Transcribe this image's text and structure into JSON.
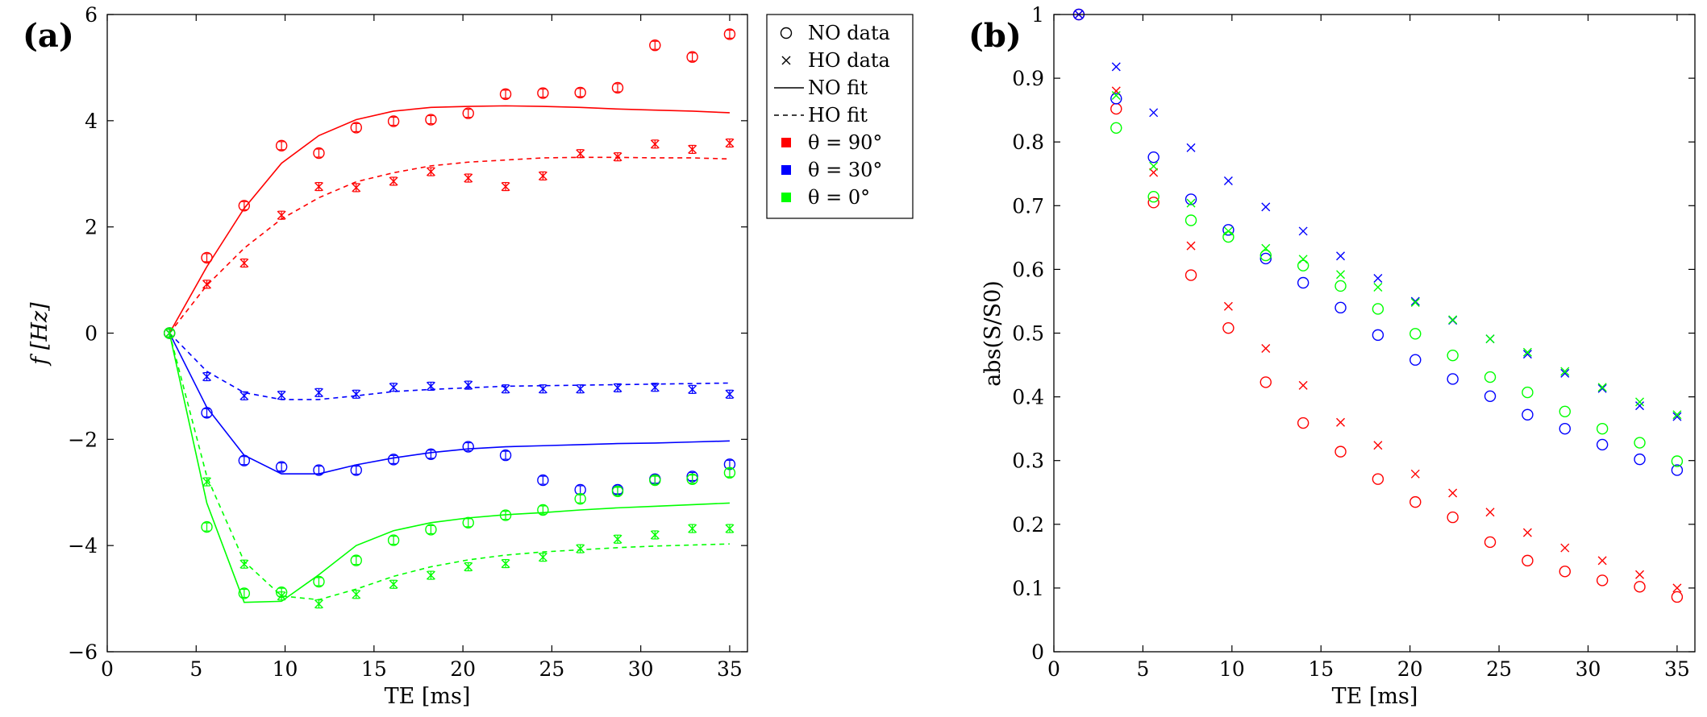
{
  "chart_data": [
    {
      "type": "scatter",
      "panel_label": "(a)",
      "xlabel": "TE [ms]",
      "ylabel": "f [Hz]",
      "xlim": [
        0,
        36
      ],
      "ylim": [
        -6,
        6
      ],
      "xticks": [
        0,
        5,
        10,
        15,
        20,
        25,
        30,
        35
      ],
      "yticks": [
        -6,
        -4,
        -2,
        0,
        2,
        4,
        6
      ],
      "xtick_labels": [
        "0",
        "5",
        "10",
        "15",
        "20",
        "25",
        "30",
        "35"
      ],
      "ytick_labels": [
        "−6",
        "−4",
        "−2",
        "0",
        "2",
        "4",
        "6"
      ],
      "legend": {
        "position": "outside-right",
        "entries": [
          {
            "label": "NO data",
            "kind": "circle"
          },
          {
            "label": "HO data",
            "kind": "cross"
          },
          {
            "label": "NO fit",
            "kind": "solid"
          },
          {
            "label": "HO fit",
            "kind": "dashed"
          },
          {
            "label": "θ = 90°",
            "kind": "square",
            "color": "#ff0000"
          },
          {
            "label": "θ = 30°",
            "kind": "square",
            "color": "#0000ff"
          },
          {
            "label": "θ = 0°",
            "kind": "square",
            "color": "#00ff00"
          }
        ]
      },
      "series": [
        {
          "name": "NO data θ = 90°",
          "kind": "circle",
          "color": "#ff0000",
          "errorbars": true,
          "x": [
            3.5,
            5.6,
            7.7,
            9.8,
            11.9,
            14,
            16.1,
            18.2,
            20.3,
            22.4,
            24.5,
            26.6,
            28.7,
            30.8,
            32.9,
            35
          ],
          "y": [
            0,
            1.42,
            2.4,
            3.53,
            3.39,
            3.87,
            3.99,
            4.02,
            4.14,
            4.5,
            4.52,
            4.53,
            4.62,
            5.42,
            5.2,
            5.63
          ]
        },
        {
          "name": "HO data θ = 90°",
          "kind": "cross",
          "color": "#ff0000",
          "errorbars": true,
          "x": [
            3.5,
            5.6,
            7.7,
            9.8,
            11.9,
            14,
            16.1,
            18.2,
            20.3,
            22.4,
            24.5,
            26.6,
            28.7,
            30.8,
            32.9,
            35
          ],
          "y": [
            0,
            0.92,
            1.32,
            2.22,
            2.76,
            2.74,
            2.86,
            3.04,
            2.92,
            2.76,
            2.96,
            3.38,
            3.32,
            3.56,
            3.46,
            3.58
          ]
        },
        {
          "name": "NO fit θ = 90°",
          "kind": "solid",
          "color": "#ff0000",
          "x": [
            3.5,
            5.6,
            7.7,
            9.8,
            11.9,
            14,
            16.1,
            18.2,
            20.3,
            22.4,
            24.5,
            26.6,
            28.7,
            30.8,
            32.9,
            35
          ],
          "y": [
            0,
            1.25,
            2.35,
            3.2,
            3.72,
            4.02,
            4.18,
            4.25,
            4.27,
            4.28,
            4.27,
            4.25,
            4.22,
            4.2,
            4.18,
            4.15
          ]
        },
        {
          "name": "HO fit θ = 90°",
          "kind": "dashed",
          "color": "#ff0000",
          "x": [
            3.5,
            5.6,
            7.7,
            9.8,
            11.9,
            14,
            16.1,
            18.2,
            20.3,
            22.4,
            24.5,
            26.6,
            28.7,
            30.8,
            32.9,
            35
          ],
          "y": [
            0,
            0.9,
            1.6,
            2.15,
            2.55,
            2.85,
            3.02,
            3.15,
            3.22,
            3.26,
            3.3,
            3.31,
            3.31,
            3.3,
            3.3,
            3.28
          ]
        },
        {
          "name": "NO data θ = 30°",
          "kind": "circle",
          "color": "#0000ff",
          "errorbars": true,
          "x": [
            3.5,
            5.6,
            7.7,
            9.8,
            11.9,
            14,
            16.1,
            18.2,
            20.3,
            22.4,
            24.5,
            26.6,
            28.7,
            30.8,
            32.9,
            35
          ],
          "y": [
            0,
            -1.5,
            -2.4,
            -2.52,
            -2.58,
            -2.58,
            -2.38,
            -2.28,
            -2.14,
            -2.3,
            -2.77,
            -2.95,
            -2.95,
            -2.75,
            -2.7,
            -2.47
          ]
        },
        {
          "name": "HO data θ = 30°",
          "kind": "cross",
          "color": "#0000ff",
          "errorbars": true,
          "x": [
            3.5,
            5.6,
            7.7,
            9.8,
            11.9,
            14,
            16.1,
            18.2,
            20.3,
            22.4,
            24.5,
            26.6,
            28.7,
            30.8,
            32.9,
            35
          ],
          "y": [
            0,
            -0.82,
            -1.18,
            -1.17,
            -1.12,
            -1.15,
            -1.02,
            -1.0,
            -0.98,
            -1.05,
            -1.05,
            -1.05,
            -1.03,
            -1.02,
            -1.06,
            -1.15
          ]
        },
        {
          "name": "NO fit θ = 30°",
          "kind": "solid",
          "color": "#0000ff",
          "x": [
            3.5,
            5.6,
            7.7,
            9.8,
            11.9,
            14,
            16.1,
            18.2,
            20.3,
            22.4,
            24.5,
            26.6,
            28.7,
            30.8,
            32.9,
            35
          ],
          "y": [
            0,
            -1.4,
            -2.3,
            -2.65,
            -2.65,
            -2.48,
            -2.35,
            -2.25,
            -2.18,
            -2.14,
            -2.12,
            -2.1,
            -2.08,
            -2.07,
            -2.05,
            -2.03
          ]
        },
        {
          "name": "HO fit θ = 30°",
          "kind": "dashed",
          "color": "#0000ff",
          "x": [
            3.5,
            5.6,
            7.7,
            9.8,
            11.9,
            14,
            16.1,
            18.2,
            20.3,
            22.4,
            24.5,
            26.6,
            28.7,
            30.8,
            32.9,
            35
          ],
          "y": [
            0,
            -0.72,
            -1.12,
            -1.25,
            -1.25,
            -1.18,
            -1.1,
            -1.06,
            -1.03,
            -1.0,
            -0.99,
            -0.98,
            -0.97,
            -0.96,
            -0.95,
            -0.94
          ]
        },
        {
          "name": "NO data θ = 0°",
          "kind": "circle",
          "color": "#00ff00",
          "errorbars": true,
          "x": [
            3.5,
            5.6,
            7.7,
            9.8,
            11.9,
            14,
            16.1,
            18.2,
            20.3,
            22.4,
            24.5,
            26.6,
            28.7,
            30.8,
            32.9,
            35
          ],
          "y": [
            0,
            -3.65,
            -4.9,
            -4.88,
            -4.68,
            -4.28,
            -3.9,
            -3.7,
            -3.57,
            -3.43,
            -3.33,
            -3.12,
            -2.98,
            -2.77,
            -2.75,
            -2.63
          ]
        },
        {
          "name": "HO data θ = 0°",
          "kind": "cross",
          "color": "#00ff00",
          "errorbars": true,
          "x": [
            3.5,
            5.6,
            7.7,
            9.8,
            11.9,
            14,
            16.1,
            18.2,
            20.3,
            22.4,
            24.5,
            26.6,
            28.7,
            30.8,
            32.9,
            35
          ],
          "y": [
            0,
            -2.8,
            -4.35,
            -4.95,
            -5.1,
            -4.92,
            -4.73,
            -4.56,
            -4.4,
            -4.34,
            -4.22,
            -4.06,
            -3.88,
            -3.8,
            -3.68,
            -3.68
          ]
        },
        {
          "name": "NO fit θ = 0°",
          "kind": "solid",
          "color": "#00ff00",
          "x": [
            3.5,
            5.6,
            7.7,
            9.8,
            11.9,
            14,
            16.1,
            18.2,
            20.3,
            22.4,
            24.5,
            26.6,
            28.7,
            30.8,
            32.9,
            35
          ],
          "y": [
            0,
            -3.2,
            -5.07,
            -5.05,
            -4.55,
            -4.0,
            -3.72,
            -3.57,
            -3.48,
            -3.42,
            -3.38,
            -3.33,
            -3.29,
            -3.26,
            -3.23,
            -3.2
          ]
        },
        {
          "name": "HO fit θ = 0°",
          "kind": "dashed",
          "color": "#00ff00",
          "x": [
            3.5,
            5.6,
            7.7,
            9.8,
            11.9,
            14,
            16.1,
            18.2,
            20.3,
            22.4,
            24.5,
            26.6,
            28.7,
            30.8,
            32.9,
            35
          ],
          "y": [
            0,
            -2.7,
            -4.3,
            -4.95,
            -5.02,
            -4.82,
            -4.58,
            -4.4,
            -4.27,
            -4.18,
            -4.12,
            -4.08,
            -4.04,
            -4.01,
            -3.99,
            -3.97
          ]
        }
      ]
    },
    {
      "type": "scatter",
      "panel_label": "(b)",
      "xlabel": "TE [ms]",
      "ylabel": "abs(S/S0)",
      "xlim": [
        0,
        36
      ],
      "ylim": [
        0,
        1
      ],
      "xticks": [
        0,
        5,
        10,
        15,
        20,
        25,
        30,
        35
      ],
      "yticks": [
        0,
        0.1,
        0.2,
        0.3,
        0.4,
        0.5,
        0.6,
        0.7,
        0.8,
        0.9,
        1
      ],
      "xtick_labels": [
        "0",
        "5",
        "10",
        "15",
        "20",
        "25",
        "30",
        "35"
      ],
      "ytick_labels": [
        "0",
        "0.1",
        "0.2",
        "0.3",
        "0.4",
        "0.5",
        "0.6",
        "0.7",
        "0.8",
        "0.9",
        "1"
      ],
      "series": [
        {
          "name": "NO data θ = 90°",
          "kind": "circle",
          "color": "#ff0000",
          "x": [
            1.4,
            3.5,
            5.6,
            7.7,
            9.8,
            11.9,
            14,
            16.1,
            18.2,
            20.3,
            22.4,
            24.5,
            26.6,
            28.7,
            30.8,
            32.9,
            35
          ],
          "y": [
            1.0,
            0.852,
            0.705,
            0.591,
            0.508,
            0.423,
            0.359,
            0.314,
            0.271,
            0.235,
            0.211,
            0.172,
            0.143,
            0.126,
            0.112,
            0.102,
            0.086
          ]
        },
        {
          "name": "HO data θ = 90°",
          "kind": "cross",
          "color": "#ff0000",
          "x": [
            1.4,
            3.5,
            5.6,
            7.7,
            9.8,
            11.9,
            14,
            16.1,
            18.2,
            20.3,
            22.4,
            24.5,
            26.6,
            28.7,
            30.8,
            32.9,
            35
          ],
          "y": [
            1.0,
            0.88,
            0.752,
            0.637,
            0.542,
            0.476,
            0.418,
            0.36,
            0.324,
            0.279,
            0.249,
            0.219,
            0.187,
            0.163,
            0.143,
            0.121,
            0.1
          ]
        },
        {
          "name": "NO data θ = 30°",
          "kind": "circle",
          "color": "#0000ff",
          "x": [
            1.4,
            3.5,
            5.6,
            7.7,
            9.8,
            11.9,
            14,
            16.1,
            18.2,
            20.3,
            22.4,
            24.5,
            26.6,
            28.7,
            30.8,
            32.9,
            35
          ],
          "y": [
            1.0,
            0.868,
            0.776,
            0.71,
            0.662,
            0.617,
            0.579,
            0.54,
            0.497,
            0.458,
            0.428,
            0.401,
            0.372,
            0.35,
            0.325,
            0.302,
            0.285
          ]
        },
        {
          "name": "HO data θ = 30°",
          "kind": "cross",
          "color": "#0000ff",
          "x": [
            1.4,
            3.5,
            5.6,
            7.7,
            9.8,
            11.9,
            14,
            16.1,
            18.2,
            20.3,
            22.4,
            24.5,
            26.6,
            28.7,
            30.8,
            32.9,
            35
          ],
          "y": [
            1.0,
            0.918,
            0.846,
            0.791,
            0.739,
            0.698,
            0.66,
            0.621,
            0.586,
            0.55,
            0.52,
            0.491,
            0.467,
            0.437,
            0.413,
            0.386,
            0.369
          ]
        },
        {
          "name": "NO data θ = 0°",
          "kind": "circle",
          "color": "#00ff00",
          "x": [
            3.5,
            5.6,
            7.7,
            9.8,
            11.9,
            14,
            16.1,
            18.2,
            20.3,
            22.4,
            24.5,
            26.6,
            28.7,
            30.8,
            32.9,
            35
          ],
          "y": [
            0.822,
            0.714,
            0.677,
            0.651,
            0.622,
            0.606,
            0.574,
            0.538,
            0.499,
            0.465,
            0.431,
            0.407,
            0.377,
            0.35,
            0.328,
            0.299
          ]
        },
        {
          "name": "HO data θ = 0°",
          "kind": "cross",
          "color": "#00ff00",
          "x": [
            3.5,
            5.6,
            7.7,
            9.8,
            11.9,
            14,
            16.1,
            18.2,
            20.3,
            22.4,
            24.5,
            26.6,
            28.7,
            30.8,
            32.9,
            35
          ],
          "y": [
            0.873,
            0.762,
            0.704,
            0.66,
            0.633,
            0.616,
            0.592,
            0.572,
            0.548,
            0.521,
            0.491,
            0.47,
            0.44,
            0.415,
            0.392,
            0.372
          ]
        }
      ]
    }
  ]
}
